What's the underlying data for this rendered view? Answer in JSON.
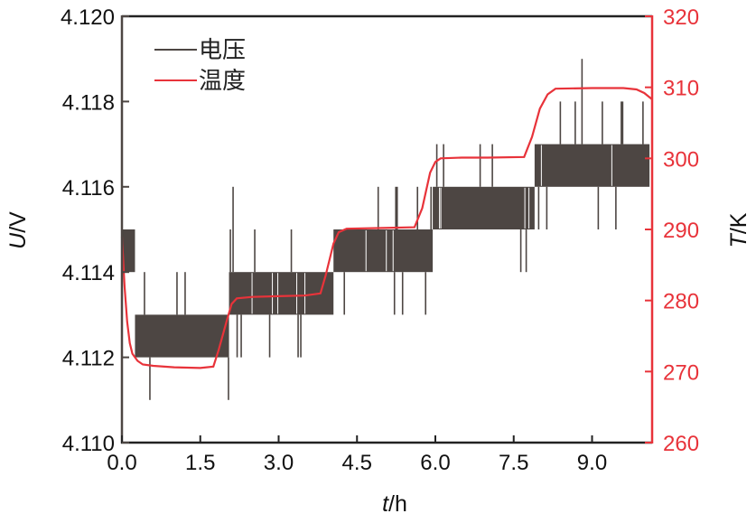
{
  "chart_data": {
    "type": "line",
    "title": "",
    "xlabel": {
      "var": "t",
      "unit": "/h"
    },
    "ylabel_left": {
      "var": "U",
      "unit": "/V"
    },
    "ylabel_right": {
      "var": "T",
      "unit": "/K"
    },
    "xlim": [
      0,
      10.15
    ],
    "ylim_left": [
      4.11,
      4.12
    ],
    "ylim_right": [
      260,
      320
    ],
    "xticks": [
      "0.0",
      "1.5",
      "3.0",
      "4.5",
      "6.0",
      "7.5",
      "9.0"
    ],
    "xtick_values": [
      0,
      1.5,
      3,
      4.5,
      6,
      7.5,
      9
    ],
    "yticks_left": [
      "4.110",
      "4.112",
      "4.114",
      "4.116",
      "4.118",
      "4.120"
    ],
    "ytick_left_values": [
      4.11,
      4.112,
      4.114,
      4.116,
      4.118,
      4.12
    ],
    "yticks_right": [
      "260",
      "270",
      "280",
      "290",
      "300",
      "310",
      "320"
    ],
    "ytick_right_values": [
      260,
      270,
      280,
      290,
      300,
      310,
      320
    ],
    "legend": {
      "placement": "top-left",
      "entries": [
        "电压",
        "温度"
      ]
    },
    "grid": false,
    "colors": {
      "voltage": "#4d4643",
      "temperature": "#e8333a",
      "right_axis": "#e8333a"
    },
    "series": [
      {
        "name": "电压",
        "axis": "left",
        "note_form": "quantized noisy signal; segments give band levels (V)",
        "segments": [
          {
            "t": [
              0.0,
              0.25
            ],
            "low": 4.114,
            "high": 4.115,
            "spike_high": 4.115,
            "spike_low": 4.112
          },
          {
            "t": [
              0.25,
              2.05
            ],
            "low": 4.112,
            "high": 4.113,
            "spike_high": 4.114,
            "spike_low": 4.111
          },
          {
            "t": [
              2.05,
              4.05
            ],
            "low": 4.113,
            "high": 4.114,
            "spike_high": 4.116,
            "spike_low": 4.112
          },
          {
            "t": [
              4.05,
              5.95
            ],
            "low": 4.114,
            "high": 4.115,
            "spike_high": 4.117,
            "spike_low": 4.113
          },
          {
            "t": [
              5.95,
              7.9
            ],
            "low": 4.115,
            "high": 4.116,
            "spike_high": 4.117,
            "spike_low": 4.114
          },
          {
            "t": [
              7.9,
              10.1
            ],
            "low": 4.116,
            "high": 4.117,
            "spike_high": 4.119,
            "spike_low": 4.115
          }
        ]
      },
      {
        "name": "温度",
        "axis": "right",
        "x": [
          0.0,
          0.05,
          0.1,
          0.15,
          0.2,
          0.3,
          0.4,
          0.6,
          1.0,
          1.5,
          1.75,
          1.85,
          2.0,
          2.1,
          2.2,
          2.5,
          3.0,
          3.5,
          3.8,
          3.9,
          4.05,
          4.15,
          4.3,
          5.0,
          5.6,
          5.75,
          5.9,
          6.0,
          6.1,
          6.5,
          7.0,
          7.7,
          7.85,
          8.0,
          8.15,
          8.3,
          9.0,
          9.6,
          9.85,
          10.0,
          10.15
        ],
        "y": [
          289,
          282,
          277,
          274,
          272.5,
          271.5,
          271,
          270.8,
          270.6,
          270.5,
          270.7,
          273,
          277,
          279.5,
          280.3,
          280.5,
          280.6,
          280.7,
          281,
          283.5,
          288,
          289.6,
          290.1,
          290.2,
          290.3,
          293,
          298,
          299.5,
          300,
          300.1,
          300.1,
          300.2,
          303,
          307,
          309,
          309.8,
          309.9,
          309.9,
          309.7,
          309.2,
          308.3
        ]
      }
    ]
  }
}
